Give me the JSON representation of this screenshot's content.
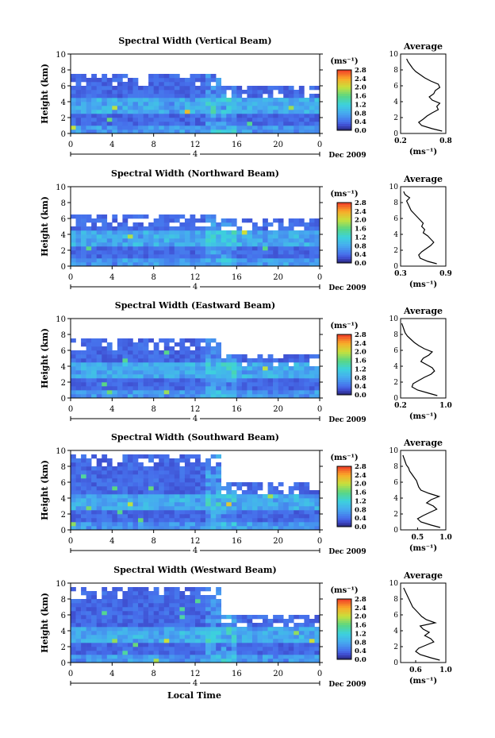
{
  "x_axis_label": "Local Time",
  "date_label": "Dec 2009",
  "day_marker": "4",
  "colorbar_unit": "(ms⁻¹)",
  "avg_unit": "(ms⁻¹)",
  "chart_data": [
    {
      "type": "heatmap",
      "title": "Spectral Width (Vertical Beam)",
      "ylabel": "Height (km)",
      "xlabel": "Local Time",
      "x_ticks": [
        "0",
        "4",
        "8",
        "12",
        "16",
        "20",
        "0"
      ],
      "xlim": [
        0,
        24
      ],
      "ylim": [
        0,
        10
      ],
      "y_ticks": [
        "0",
        "2",
        "4",
        "6",
        "8",
        "10"
      ],
      "colorbar": {
        "unit": "(ms⁻¹)",
        "ticks": [
          "0.0",
          "0.4",
          "0.8",
          "1.2",
          "1.6",
          "2.0",
          "2.4",
          "2.8"
        ],
        "range": [
          0,
          2.8
        ]
      },
      "data_top_km": {
        "before_14h": 7.5,
        "after_16h": 6.0
      },
      "average_profile": {
        "title": "Average",
        "xlabel": "(ms⁻¹)",
        "ylabel": "Height (km)",
        "xlim": [
          0.2,
          0.8
        ],
        "x_ticks": [
          "0.2",
          "0.8"
        ],
        "y_ticks": [
          "0",
          "2",
          "4",
          "6",
          "8",
          "10"
        ],
        "height_km": [
          0.3,
          0.6,
          1.0,
          1.4,
          1.8,
          2.2,
          2.6,
          3.0,
          3.4,
          3.8,
          4.2,
          4.6,
          5.0,
          5.4,
          5.8,
          6.2,
          6.6,
          7.0,
          7.4,
          7.8,
          8.2,
          8.6,
          9.0,
          9.4
        ],
        "value": [
          0.75,
          0.62,
          0.48,
          0.44,
          0.5,
          0.55,
          0.62,
          0.7,
          0.68,
          0.72,
          0.62,
          0.58,
          0.64,
          0.66,
          0.72,
          0.7,
          0.6,
          0.52,
          0.46,
          0.4,
          0.36,
          0.33,
          0.3,
          0.28
        ]
      }
    },
    {
      "type": "heatmap",
      "title": "Spectral Width (Northward Beam)",
      "ylabel": "Height (km)",
      "xlabel": "Local Time",
      "x_ticks": [
        "0",
        "4",
        "8",
        "12",
        "16",
        "20",
        "0"
      ],
      "xlim": [
        0,
        24
      ],
      "ylim": [
        0,
        10
      ],
      "y_ticks": [
        "0",
        "2",
        "4",
        "6",
        "8",
        "10"
      ],
      "colorbar": {
        "unit": "(ms⁻¹)",
        "ticks": [
          "0.0",
          "0.4",
          "0.8",
          "1.2",
          "1.6",
          "2.0",
          "2.4",
          "2.8"
        ],
        "range": [
          0,
          2.8
        ]
      },
      "data_top_km": {
        "before_14h": 6.5,
        "after_16h": 5.8
      },
      "average_profile": {
        "title": "Average",
        "xlabel": "(ms⁻¹)",
        "ylabel": "Height (km)",
        "xlim": [
          0.3,
          0.9
        ],
        "x_ticks": [
          "0.3",
          "0.9"
        ],
        "y_ticks": [
          "0",
          "2",
          "4",
          "6",
          "8",
          "10"
        ],
        "height_km": [
          0.3,
          0.6,
          1.0,
          1.4,
          1.8,
          2.2,
          2.6,
          3.0,
          3.4,
          3.8,
          4.2,
          4.6,
          5.0,
          5.4,
          5.8,
          6.2,
          6.6,
          7.0,
          7.4,
          7.8,
          8.2,
          8.6,
          9.0,
          9.4
        ],
        "value": [
          0.78,
          0.66,
          0.56,
          0.54,
          0.58,
          0.64,
          0.7,
          0.74,
          0.7,
          0.66,
          0.6,
          0.62,
          0.58,
          0.6,
          0.56,
          0.52,
          0.48,
          0.44,
          0.42,
          0.4,
          0.38,
          0.42,
          0.36,
          0.34
        ]
      }
    },
    {
      "type": "heatmap",
      "title": "Spectral Width (Eastward Beam)",
      "ylabel": "Height (km)",
      "xlabel": "Local Time",
      "x_ticks": [
        "0",
        "4",
        "8",
        "12",
        "16",
        "20",
        "0"
      ],
      "xlim": [
        0,
        24
      ],
      "ylim": [
        0,
        10
      ],
      "y_ticks": [
        "0",
        "2",
        "4",
        "6",
        "8",
        "10"
      ],
      "colorbar": {
        "unit": "(ms⁻¹)",
        "ticks": [
          "0.0",
          "0.4",
          "0.8",
          "1.2",
          "1.6",
          "2.0",
          "2.4",
          "2.8"
        ],
        "range": [
          0,
          2.8
        ]
      },
      "data_top_km": {
        "before_14h": 7.5,
        "after_16h": 5.5
      },
      "average_profile": {
        "title": "Average",
        "xlabel": "(ms⁻¹)",
        "ylabel": "Height (km)",
        "xlim": [
          0.2,
          1.0
        ],
        "x_ticks": [
          "0.2",
          "1.0"
        ],
        "y_ticks": [
          "0",
          "2",
          "4",
          "6",
          "8",
          "10"
        ],
        "height_km": [
          0.3,
          0.6,
          1.0,
          1.4,
          1.8,
          2.2,
          2.6,
          3.0,
          3.4,
          3.8,
          4.2,
          4.6,
          5.0,
          5.4,
          5.8,
          6.2,
          6.6,
          7.0,
          7.4,
          7.8,
          8.2,
          8.6,
          9.0,
          9.4
        ],
        "value": [
          0.85,
          0.7,
          0.5,
          0.4,
          0.42,
          0.52,
          0.62,
          0.74,
          0.8,
          0.76,
          0.66,
          0.56,
          0.6,
          0.7,
          0.76,
          0.62,
          0.52,
          0.44,
          0.38,
          0.32,
          0.28,
          0.26,
          0.24,
          0.22
        ]
      }
    },
    {
      "type": "heatmap",
      "title": "Spectral Width (Southward Beam)",
      "ylabel": "Height (km)",
      "xlabel": "Local Time",
      "x_ticks": [
        "0",
        "4",
        "8",
        "12",
        "16",
        "20",
        "0"
      ],
      "xlim": [
        0,
        24
      ],
      "ylim": [
        0,
        10
      ],
      "y_ticks": [
        "0",
        "2",
        "4",
        "6",
        "8",
        "10"
      ],
      "colorbar": {
        "unit": "(ms⁻¹)",
        "ticks": [
          "0.0",
          "0.4",
          "0.8",
          "1.2",
          "1.6",
          "2.0",
          "2.4",
          "2.8"
        ],
        "range": [
          0,
          2.8
        ]
      },
      "data_top_km": {
        "before_14h": 9.5,
        "after_16h": 6.0
      },
      "average_profile": {
        "title": "Average",
        "xlabel": "(ms⁻¹)",
        "ylabel": "Height (km)",
        "xlim": [
          0.2,
          1.0
        ],
        "x_ticks": [
          "0.5",
          "1.0"
        ],
        "y_ticks": [
          "0",
          "2",
          "4",
          "6",
          "8",
          "10"
        ],
        "height_km": [
          0.3,
          0.6,
          1.0,
          1.4,
          1.8,
          2.2,
          2.6,
          3.0,
          3.4,
          3.8,
          4.2,
          4.6,
          5.0,
          5.4,
          5.8,
          6.2,
          6.6,
          7.0,
          7.4,
          7.8,
          8.2,
          8.6,
          9.0,
          9.4
        ],
        "value": [
          0.9,
          0.74,
          0.56,
          0.5,
          0.6,
          0.72,
          0.84,
          0.78,
          0.66,
          0.74,
          0.88,
          0.7,
          0.56,
          0.52,
          0.5,
          0.48,
          0.44,
          0.4,
          0.36,
          0.34,
          0.3,
          0.28,
          0.26,
          0.24
        ]
      }
    },
    {
      "type": "heatmap",
      "title": "Spectral Width (Westward Beam)",
      "ylabel": "Height (km)",
      "xlabel": "Local Time",
      "x_ticks": [
        "0",
        "4",
        "8",
        "12",
        "16",
        "20",
        "0"
      ],
      "xlim": [
        0,
        24
      ],
      "ylim": [
        0,
        10
      ],
      "y_ticks": [
        "0",
        "2",
        "4",
        "6",
        "8",
        "10"
      ],
      "colorbar": {
        "unit": "(ms⁻¹)",
        "ticks": [
          "0.0",
          "0.4",
          "0.8",
          "1.2",
          "1.6",
          "2.0",
          "2.4",
          "2.8"
        ],
        "range": [
          0,
          2.8
        ]
      },
      "data_top_km": {
        "before_14h": 9.5,
        "after_16h": 6.0
      },
      "average_profile": {
        "title": "Average",
        "xlabel": "(ms⁻¹)",
        "ylabel": "Height (km)",
        "xlim": [
          0.4,
          1.0
        ],
        "x_ticks": [
          "0.6",
          "1.0"
        ],
        "y_ticks": [
          "0",
          "2",
          "4",
          "6",
          "8",
          "10"
        ],
        "height_km": [
          0.3,
          0.6,
          1.0,
          1.4,
          1.8,
          2.2,
          2.6,
          3.0,
          3.4,
          3.8,
          4.2,
          4.6,
          5.0,
          5.4,
          5.8,
          6.2,
          6.6,
          7.0,
          7.4,
          7.8,
          8.2,
          8.6,
          9.0,
          9.4
        ],
        "value": [
          0.92,
          0.8,
          0.66,
          0.6,
          0.64,
          0.74,
          0.84,
          0.8,
          0.72,
          0.78,
          0.7,
          0.66,
          0.86,
          0.74,
          0.68,
          0.64,
          0.6,
          0.56,
          0.54,
          0.52,
          0.5,
          0.48,
          0.46,
          0.44
        ]
      }
    }
  ]
}
